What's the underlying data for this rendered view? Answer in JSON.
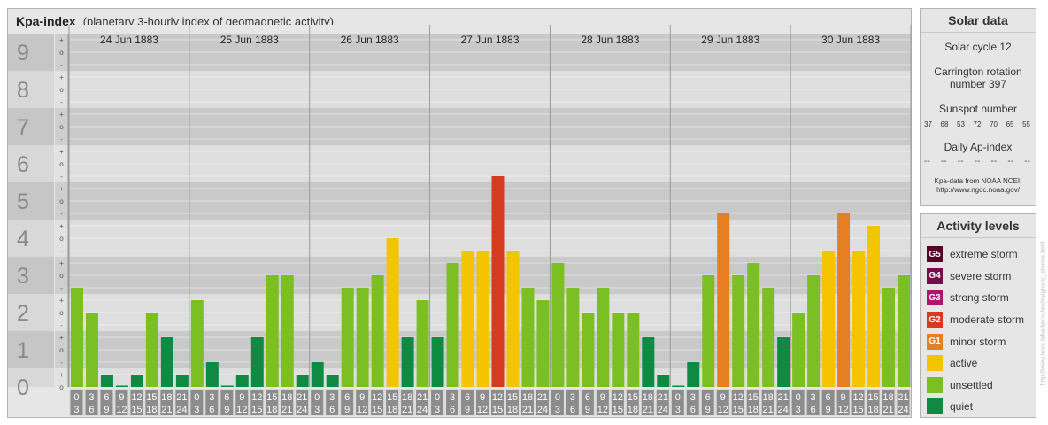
{
  "title": "Kpa-index",
  "subtitle": "(planetary 3-hourly index of geomagnetic activity)",
  "solar_data": {
    "heading": "Solar data",
    "cycle": "Solar cycle 12",
    "carrington": "Carrington rotation number 397",
    "sunspot_heading": "Sunspot number",
    "sunspot_values": [
      "37",
      "68",
      "53",
      "72",
      "70",
      "65",
      "55"
    ],
    "ap_heading": "Daily Ap-index",
    "ap_values": [
      "--",
      "--",
      "--",
      "--",
      "--",
      "--",
      "--"
    ],
    "source_line1": "Kpa-data from NOAA NCEI:",
    "source_line2": "http://www.ngdc.noaa.gov/"
  },
  "activity_levels": {
    "heading": "Activity levels",
    "items": [
      {
        "code": "G5",
        "label": "extreme storm",
        "color": "#5a0028"
      },
      {
        "code": "G4",
        "label": "severe storm",
        "color": "#7a0b4b"
      },
      {
        "code": "G3",
        "label": "strong storm",
        "color": "#b0126e"
      },
      {
        "code": "G2",
        "label": "moderate storm",
        "color": "#d43b1f"
      },
      {
        "code": "G1",
        "label": "minor storm",
        "color": "#e67e22"
      },
      {
        "code": "",
        "label": "active",
        "color": "#f5c400"
      },
      {
        "code": "",
        "label": "unsettled",
        "color": "#7cbf22"
      },
      {
        "code": "",
        "label": "quiet",
        "color": "#0f8a43"
      }
    ]
  },
  "credit": "http://www.tesis.lebedev.ru/en/magnetic_storms.html",
  "chart_data": {
    "type": "bar",
    "ylim": [
      0,
      9
    ],
    "y_ticks": [
      "0",
      "1",
      "2",
      "3",
      "4",
      "5",
      "6",
      "7",
      "8",
      "9"
    ],
    "minor_tick_labels": [
      "o",
      "+",
      "-"
    ],
    "days": [
      "24 Jun 1883",
      "25 Jun 1883",
      "26 Jun 1883",
      "27 Jun 1883",
      "28 Jun 1883",
      "29 Jun 1883",
      "30 Jun 1883"
    ],
    "interval_start": [
      "0",
      "3",
      "6",
      "9",
      "12",
      "15",
      "18",
      "21"
    ],
    "interval_end": [
      "3",
      "6",
      "9",
      "12",
      "15",
      "18",
      "21",
      "24"
    ],
    "values": [
      [
        2.667,
        2.0,
        0.333,
        0.0,
        0.333,
        2.0,
        1.333,
        0.333
      ],
      [
        2.333,
        0.667,
        0.0,
        0.333,
        1.333,
        3.0,
        3.0,
        0.333
      ],
      [
        0.667,
        0.333,
        2.667,
        2.667,
        3.0,
        4.0,
        1.333,
        2.333
      ],
      [
        1.333,
        3.333,
        3.667,
        3.667,
        5.667,
        3.667,
        2.667,
        2.333
      ],
      [
        3.333,
        2.667,
        2.0,
        2.667,
        2.0,
        2.0,
        1.333,
        0.333
      ],
      [
        0.0,
        0.667,
        3.0,
        4.667,
        3.0,
        3.333,
        2.667,
        1.333
      ],
      [
        2.0,
        3.0,
        3.667,
        4.667,
        3.667,
        4.333,
        2.667,
        3.0
      ]
    ]
  }
}
